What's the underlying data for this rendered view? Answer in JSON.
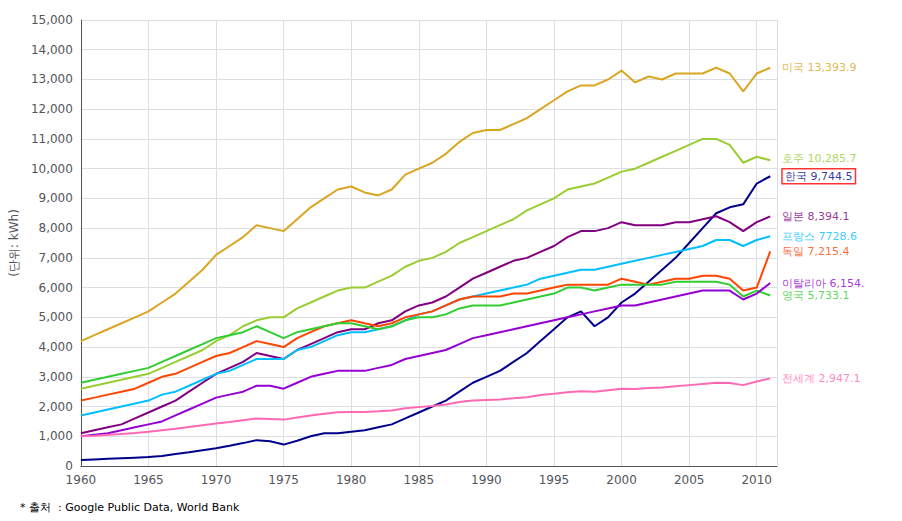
{
  "chart_data": {
    "type": "line",
    "ylabel": "(단위: kWh)",
    "source": "* 출처  : Google Public Data, World Bank",
    "x": [
      1960,
      1961,
      1962,
      1963,
      1964,
      1965,
      1966,
      1967,
      1968,
      1969,
      1970,
      1971,
      1972,
      1973,
      1974,
      1975,
      1976,
      1977,
      1978,
      1979,
      1980,
      1981,
      1982,
      1983,
      1984,
      1985,
      1986,
      1987,
      1988,
      1989,
      1990,
      1991,
      1992,
      1993,
      1994,
      1995,
      1996,
      1997,
      1998,
      1999,
      2000,
      2001,
      2002,
      2003,
      2004,
      2005,
      2006,
      2007,
      2008,
      2009,
      2010,
      2011
    ],
    "series": [
      {
        "name": "미국",
        "color": "#DAA520",
        "values": [
          4200,
          4400,
          4600,
          4800,
          5000,
          5200,
          5500,
          5800,
          6200,
          6600,
          7100,
          7400,
          7700,
          8100,
          8000,
          7900,
          8300,
          8700,
          9000,
          9300,
          9400,
          9200,
          9100,
          9300,
          9800,
          10000,
          10200,
          10500,
          10900,
          11200,
          11300,
          11300,
          11500,
          11700,
          12000,
          12300,
          12600,
          12800,
          12800,
          13000,
          13300,
          12900,
          13100,
          13000,
          13200,
          13200,
          13200,
          13400,
          13200,
          12600,
          13200,
          13394
        ]
      },
      {
        "name": "호주",
        "color": "#9ACD32",
        "values": [
          2600,
          2700,
          2800,
          2900,
          3000,
          3100,
          3300,
          3500,
          3700,
          3900,
          4200,
          4400,
          4700,
          4900,
          5000,
          5000,
          5300,
          5500,
          5700,
          5900,
          6000,
          6000,
          6200,
          6400,
          6700,
          6900,
          7000,
          7200,
          7500,
          7700,
          7900,
          8100,
          8300,
          8600,
          8800,
          9000,
          9300,
          9400,
          9500,
          9700,
          9900,
          10000,
          10200,
          10400,
          10600,
          10800,
          11000,
          11000,
          10800,
          10200,
          10400,
          10286
        ]
      },
      {
        "name": "한국",
        "color": "#00008B",
        "values": [
          200,
          220,
          240,
          260,
          280,
          300,
          340,
          400,
          460,
          530,
          600,
          680,
          770,
          870,
          830,
          720,
          850,
          1000,
          1100,
          1100,
          1150,
          1200,
          1300,
          1400,
          1600,
          1800,
          2000,
          2200,
          2500,
          2800,
          3000,
          3200,
          3500,
          3800,
          4200,
          4600,
          5000,
          5200,
          4700,
          5000,
          5500,
          5800,
          6200,
          6600,
          7000,
          7500,
          8000,
          8500,
          8700,
          8800,
          9500,
          9745
        ]
      },
      {
        "name": "일본",
        "color": "#800080",
        "values": [
          1100,
          1200,
          1300,
          1400,
          1600,
          1800,
          2000,
          2200,
          2500,
          2800,
          3100,
          3300,
          3500,
          3800,
          3700,
          3600,
          3900,
          4100,
          4300,
          4500,
          4600,
          4600,
          4800,
          4900,
          5200,
          5400,
          5500,
          5700,
          6000,
          6300,
          6500,
          6700,
          6900,
          7000,
          7200,
          7400,
          7700,
          7900,
          7900,
          8000,
          8200,
          8100,
          8100,
          8100,
          8200,
          8200,
          8300,
          8400,
          8200,
          7900,
          8200,
          8394
        ]
      },
      {
        "name": "프랑스",
        "color": "#00BFFF",
        "values": [
          1700,
          1800,
          1900,
          2000,
          2100,
          2200,
          2400,
          2500,
          2700,
          2900,
          3100,
          3200,
          3400,
          3600,
          3600,
          3600,
          3900,
          4000,
          4200,
          4400,
          4500,
          4500,
          4600,
          4700,
          4900,
          5100,
          5200,
          5400,
          5600,
          5700,
          5800,
          5900,
          6000,
          6100,
          6300,
          6400,
          6500,
          6600,
          6600,
          6700,
          6800,
          6900,
          7000,
          7100,
          7200,
          7300,
          7400,
          7600,
          7600,
          7400,
          7600,
          7729
        ]
      },
      {
        "name": "독일",
        "color": "#FF4500",
        "values": [
          2200,
          2300,
          2400,
          2500,
          2600,
          2800,
          3000,
          3100,
          3300,
          3500,
          3700,
          3800,
          4000,
          4200,
          4100,
          4000,
          4300,
          4500,
          4700,
          4800,
          4900,
          4800,
          4700,
          4800,
          5000,
          5100,
          5200,
          5400,
          5600,
          5700,
          5700,
          5700,
          5800,
          5800,
          5900,
          6000,
          6100,
          6100,
          6100,
          6100,
          6300,
          6200,
          6100,
          6200,
          6300,
          6300,
          6400,
          6400,
          6300,
          5900,
          6000,
          7215
        ]
      },
      {
        "name": "영국",
        "color": "#32CD32",
        "values": [
          2800,
          2900,
          3000,
          3100,
          3200,
          3300,
          3500,
          3700,
          3900,
          4100,
          4300,
          4400,
          4500,
          4700,
          4500,
          4300,
          4500,
          4600,
          4700,
          4800,
          4800,
          4700,
          4600,
          4700,
          4900,
          5000,
          5000,
          5100,
          5300,
          5400,
          5400,
          5400,
          5500,
          5600,
          5700,
          5800,
          6000,
          6000,
          5900,
          6000,
          6100,
          6100,
          6100,
          6100,
          6200,
          6200,
          6200,
          6200,
          6100,
          5700,
          5900,
          5733
        ]
      },
      {
        "name": "이탈리아",
        "color": "#9400D3",
        "values": [
          1000,
          1050,
          1100,
          1200,
          1300,
          1400,
          1500,
          1700,
          1900,
          2100,
          2300,
          2400,
          2500,
          2700,
          2700,
          2600,
          2800,
          3000,
          3100,
          3200,
          3200,
          3200,
          3300,
          3400,
          3600,
          3700,
          3800,
          3900,
          4100,
          4300,
          4400,
          4500,
          4600,
          4700,
          4800,
          4900,
          5000,
          5100,
          5200,
          5300,
          5400,
          5400,
          5500,
          5600,
          5700,
          5800,
          5900,
          5900,
          5900,
          5600,
          5800,
          6154
        ]
      },
      {
        "name": "전세계",
        "color": "#FF69B4",
        "values": [
          1000,
          1020,
          1050,
          1080,
          1110,
          1150,
          1200,
          1250,
          1310,
          1370,
          1430,
          1480,
          1540,
          1600,
          1580,
          1560,
          1630,
          1700,
          1760,
          1810,
          1820,
          1820,
          1840,
          1870,
          1940,
          1980,
          2020,
          2070,
          2150,
          2200,
          2220,
          2240,
          2280,
          2310,
          2390,
          2430,
          2480,
          2510,
          2500,
          2550,
          2600,
          2590,
          2620,
          2640,
          2680,
          2720,
          2760,
          2800,
          2790,
          2720,
          2840,
          2947
        ]
      }
    ],
    "annotations": [
      {
        "text": "미국 13,393.9",
        "x": 2011.5,
        "y": 13394,
        "color": "#DAA520"
      },
      {
        "text": "호주 10,285.7",
        "x": 2011.5,
        "y": 10350,
        "color": "#9ACD32"
      },
      {
        "text": "한국 9,744.5",
        "x": 2011.5,
        "y": 9744,
        "color": "#00008B",
        "box_color": "#FF0000"
      },
      {
        "text": "일본 8,394.1",
        "x": 2011.5,
        "y": 8394,
        "color": "#800080"
      },
      {
        "text": "프랑스 7728.6",
        "x": 2011.5,
        "y": 7729,
        "color": "#00BFFF"
      },
      {
        "text": "독일 7,215.4",
        "x": 2011.5,
        "y": 7215,
        "color": "#FF4500"
      },
      {
        "text": "영국 5,733.1",
        "x": 2011.5,
        "y": 5733,
        "color": "#32CD32"
      },
      {
        "text": "이탈리아 6,154.",
        "x": 2011.5,
        "y": 6154,
        "color": "#9400D3"
      },
      {
        "text": "전세계 2,947.1",
        "x": 2011.5,
        "y": 2947,
        "color": "#FF69B4"
      }
    ],
    "xlim": [
      1960,
      2011.5
    ],
    "ylim": [
      0,
      15000
    ],
    "xticks": [
      1960,
      1965,
      1970,
      1975,
      1980,
      1985,
      1990,
      1995,
      2000,
      2005,
      2010
    ],
    "yticks": [
      0,
      {
        "value": 1000,
        "label": "1,000"
      },
      {
        "value": 2000,
        "label": "2,000"
      },
      {
        "value": 3000,
        "label": "3,000"
      },
      {
        "value": 4000,
        "label": "4,000"
      },
      {
        "value": 5000,
        "label": "5,000"
      },
      {
        "value": 6000,
        "label": "6,000"
      },
      {
        "value": 7000,
        "label": "7,000"
      },
      {
        "value": 8000,
        "label": "8,000"
      },
      {
        "value": 9000,
        "label": "9,000"
      },
      {
        "value": 10000,
        "label": "10,000"
      },
      {
        "value": 11000,
        "label": "11,000"
      },
      {
        "value": 12000,
        "label": "12,000"
      },
      {
        "value": 13000,
        "label": "13,000"
      },
      {
        "value": 14000,
        "label": "14,000"
      },
      {
        "value": 15000,
        "label": "15,000"
      }
    ],
    "grid": true
  }
}
